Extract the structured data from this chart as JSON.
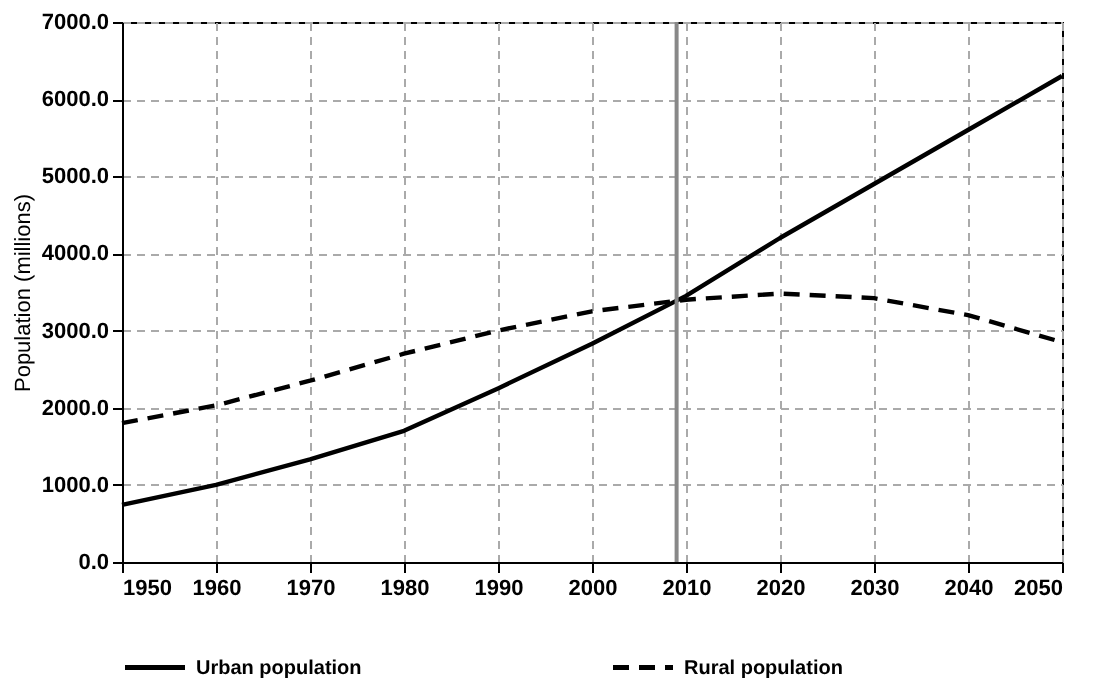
{
  "chart_data": {
    "type": "line",
    "ylabel": "Population (millions)",
    "x": [
      1950,
      1960,
      1970,
      1980,
      1990,
      2000,
      2010,
      2020,
      2030,
      2040,
      2050
    ],
    "series": [
      {
        "name": "Urban population",
        "color": "#000000",
        "line_style": "solid",
        "values": [
          740,
          1000,
          1330,
          1700,
          2250,
          2830,
          3450,
          4200,
          4900,
          5600,
          6300
        ]
      },
      {
        "name": "Rural population",
        "color": "#000000",
        "line_style": "dashed",
        "values": [
          1800,
          2030,
          2350,
          2700,
          3000,
          3250,
          3400,
          3480,
          3420,
          3200,
          2850
        ]
      }
    ],
    "xlim": [
      1950,
      2050
    ],
    "xticks": [
      1950,
      1960,
      1970,
      1980,
      1990,
      2000,
      2010,
      2020,
      2030,
      2040,
      2050
    ],
    "ylim": [
      0,
      7000
    ],
    "yticks": [
      {
        "value": 0,
        "label": "0.0"
      },
      {
        "value": 1000,
        "label": "1000.0"
      },
      {
        "value": 2000,
        "label": "2000.0"
      },
      {
        "value": 3000,
        "label": "3000.0"
      },
      {
        "value": 4000,
        "label": "4000.0"
      },
      {
        "value": 5000,
        "label": "5000.0"
      },
      {
        "value": 6000,
        "label": "6000.0"
      },
      {
        "value": 7000,
        "label": "7000.0"
      }
    ],
    "ref_lines": [
      {
        "axis": "x",
        "value": 2009,
        "color": "#888888"
      }
    ],
    "grid": true,
    "legend": "bottom",
    "marker": "none"
  }
}
